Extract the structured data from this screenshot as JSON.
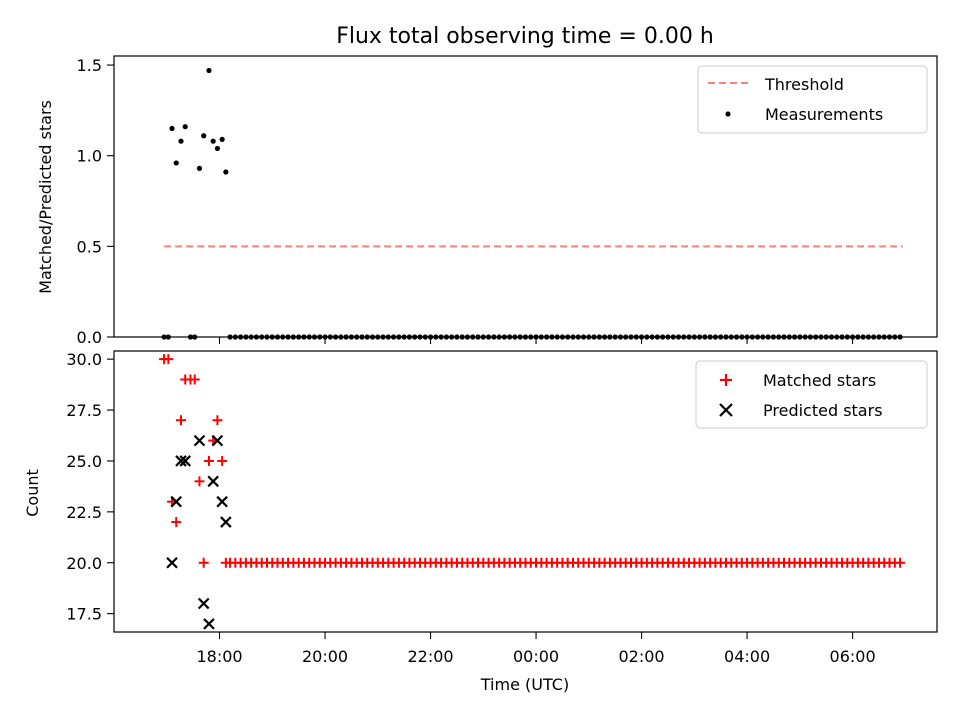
{
  "chart_data": [
    {
      "type": "scatter",
      "title": "Flux total observing time = 0.00 h",
      "xlabel": "",
      "ylabel": "Matched/Predicted stars",
      "ylim": [
        0.0,
        1.55
      ],
      "yticks": [
        "0.0",
        "0.5",
        "1.0",
        "1.5"
      ],
      "ytick_values": [
        0.0,
        0.5,
        1.0,
        1.5
      ],
      "xlim_hours": [
        16.0,
        31.6
      ],
      "xtick_hours": [
        18,
        20,
        22,
        24,
        26,
        28,
        30
      ],
      "xtick_labels_shown": false,
      "legend_position": "top-right",
      "series": [
        {
          "name": "Threshold",
          "kind": "dashed-line",
          "color": "#ff7f7f",
          "x": [
            16.95,
            30.95
          ],
          "y": [
            0.5,
            0.5
          ]
        },
        {
          "name": "Measurements",
          "kind": "dot",
          "color": "#000000",
          "points": [
            [
              16.95,
              0.0
            ],
            [
              17.03,
              0.0
            ],
            [
              17.1,
              1.15
            ],
            [
              17.18,
              0.96
            ],
            [
              17.27,
              1.08
            ],
            [
              17.35,
              1.16
            ],
            [
              17.45,
              0.0
            ],
            [
              17.53,
              0.0
            ],
            [
              17.62,
              0.93
            ],
            [
              17.7,
              1.11
            ],
            [
              17.8,
              1.47
            ],
            [
              17.88,
              1.08
            ],
            [
              17.96,
              1.04
            ],
            [
              18.05,
              1.09
            ],
            [
              18.12,
              0.91
            ]
          ],
          "zero_run": {
            "start": 18.2,
            "end": 30.95,
            "step": 0.1,
            "y": 0.0
          }
        }
      ]
    },
    {
      "type": "scatter",
      "title": "",
      "xlabel": "Time (UTC)",
      "ylabel": "Count",
      "ylim": [
        16.6,
        30.4
      ],
      "yticks": [
        "17.5",
        "20.0",
        "22.5",
        "25.0",
        "27.5",
        "30.0"
      ],
      "ytick_values": [
        17.5,
        20.0,
        22.5,
        25.0,
        27.5,
        30.0
      ],
      "xlim_hours": [
        16.0,
        31.6
      ],
      "xticks": [
        "18:00",
        "20:00",
        "22:00",
        "00:00",
        "02:00",
        "04:00",
        "06:00"
      ],
      "xtick_hours": [
        18,
        20,
        22,
        24,
        26,
        28,
        30
      ],
      "legend_position": "top-right",
      "series": [
        {
          "name": "Matched stars",
          "kind": "plus",
          "color": "#ff0000",
          "points": [
            [
              16.95,
              30
            ],
            [
              17.03,
              30
            ],
            [
              17.1,
              23
            ],
            [
              17.18,
              22
            ],
            [
              17.27,
              27
            ],
            [
              17.35,
              29
            ],
            [
              17.45,
              29
            ],
            [
              17.53,
              29
            ],
            [
              17.62,
              24
            ],
            [
              17.7,
              20
            ],
            [
              17.8,
              25
            ],
            [
              17.88,
              26
            ],
            [
              17.96,
              27
            ],
            [
              18.05,
              25
            ],
            [
              18.12,
              20
            ]
          ],
          "run": {
            "start": 18.2,
            "end": 30.95,
            "step": 0.1,
            "y": 20
          }
        },
        {
          "name": "Predicted stars",
          "kind": "x",
          "color": "#000000",
          "points": [
            [
              17.1,
              20
            ],
            [
              17.18,
              23
            ],
            [
              17.27,
              25
            ],
            [
              17.35,
              25
            ],
            [
              17.62,
              26
            ],
            [
              17.7,
              18
            ],
            [
              17.8,
              17
            ],
            [
              17.88,
              24
            ],
            [
              17.96,
              26
            ],
            [
              18.05,
              23
            ],
            [
              18.12,
              22
            ]
          ]
        }
      ]
    }
  ]
}
